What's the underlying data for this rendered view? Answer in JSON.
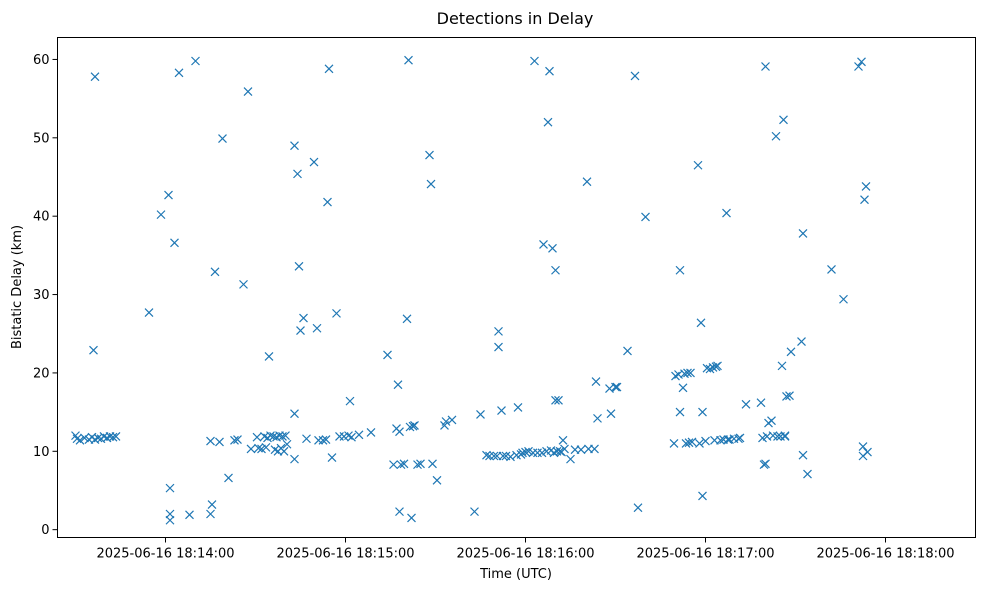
{
  "chart_data": {
    "type": "scatter",
    "title": "Detections in Delay",
    "xlabel": "Time (UTC)",
    "ylabel": "Bistatic Delay (km)",
    "marker": "x",
    "color": "#1f77b4",
    "grid": false,
    "x_unit": "seconds_after_18:13:00 (2025-06-16 UTC)",
    "xlim": [
      24,
      330
    ],
    "ylim": [
      -1.0,
      62.8
    ],
    "xticks": [
      {
        "value": 60,
        "label": "2025-06-16 18:14:00"
      },
      {
        "value": 120,
        "label": "2025-06-16 18:15:00"
      },
      {
        "value": 180,
        "label": "2025-06-16 18:16:00"
      },
      {
        "value": 240,
        "label": "2025-06-16 18:17:00"
      },
      {
        "value": 300,
        "label": "2025-06-16 18:18:00"
      }
    ],
    "yticks": [
      0,
      10,
      20,
      30,
      40,
      50,
      60
    ],
    "points": [
      [
        30.0,
        12.0
      ],
      [
        30.5,
        11.6
      ],
      [
        31.5,
        11.4
      ],
      [
        33.0,
        11.7
      ],
      [
        34.5,
        11.5
      ],
      [
        35.5,
        11.8
      ],
      [
        36.5,
        11.5
      ],
      [
        37.5,
        11.7
      ],
      [
        38.5,
        11.6
      ],
      [
        39.5,
        11.9
      ],
      [
        40.5,
        11.7
      ],
      [
        41.5,
        11.9
      ],
      [
        42.5,
        11.8
      ],
      [
        43.5,
        11.9
      ],
      [
        36.0,
        22.9
      ],
      [
        36.5,
        57.8
      ],
      [
        54.5,
        27.7
      ],
      [
        58.5,
        40.2
      ],
      [
        61.0,
        42.7
      ],
      [
        61.5,
        5.3
      ],
      [
        61.5,
        2.0
      ],
      [
        61.5,
        1.2
      ],
      [
        63.0,
        36.6
      ],
      [
        64.5,
        58.3
      ],
      [
        68.0,
        1.9
      ],
      [
        70.0,
        59.8
      ],
      [
        75.0,
        2.0
      ],
      [
        75.0,
        11.3
      ],
      [
        75.5,
        3.2
      ],
      [
        76.5,
        32.9
      ],
      [
        78.0,
        11.2
      ],
      [
        79.0,
        49.9
      ],
      [
        81.0,
        6.6
      ],
      [
        83.0,
        11.4
      ],
      [
        84.0,
        11.5
      ],
      [
        86.0,
        31.3
      ],
      [
        87.5,
        55.9
      ],
      [
        88.5,
        10.3
      ],
      [
        90.5,
        11.8
      ],
      [
        91.0,
        10.4
      ],
      [
        92.0,
        10.3
      ],
      [
        93.0,
        11.9
      ],
      [
        93.5,
        10.5
      ],
      [
        94.0,
        11.7
      ],
      [
        94.5,
        22.1
      ],
      [
        95.0,
        12.0
      ],
      [
        96.0,
        11.9
      ],
      [
        96.5,
        10.2
      ],
      [
        97.0,
        11.8
      ],
      [
        97.5,
        10.0
      ],
      [
        98.0,
        12.0
      ],
      [
        98.5,
        10.4
      ],
      [
        99.0,
        11.9
      ],
      [
        99.5,
        10.0
      ],
      [
        100.0,
        12.0
      ],
      [
        100.5,
        10.9
      ],
      [
        103.0,
        49.0
      ],
      [
        103.0,
        14.8
      ],
      [
        103.0,
        9.0
      ],
      [
        104.0,
        45.4
      ],
      [
        104.5,
        33.6
      ],
      [
        105.0,
        25.4
      ],
      [
        106.0,
        27.0
      ],
      [
        107.0,
        11.6
      ],
      [
        109.5,
        46.9
      ],
      [
        110.5,
        25.7
      ],
      [
        111.0,
        11.4
      ],
      [
        112.5,
        11.4
      ],
      [
        113.5,
        11.5
      ],
      [
        114.0,
        41.8
      ],
      [
        114.5,
        58.8
      ],
      [
        115.5,
        9.2
      ],
      [
        117.0,
        27.6
      ],
      [
        118.0,
        11.9
      ],
      [
        119.5,
        11.9
      ],
      [
        121.0,
        12.0
      ],
      [
        121.5,
        16.4
      ],
      [
        122.0,
        11.8
      ],
      [
        124.5,
        12.1
      ],
      [
        128.5,
        12.4
      ],
      [
        134.0,
        22.3
      ],
      [
        136.0,
        8.3
      ],
      [
        137.0,
        12.9
      ],
      [
        137.5,
        18.5
      ],
      [
        138.0,
        2.3
      ],
      [
        138.0,
        12.5
      ],
      [
        138.5,
        8.3
      ],
      [
        139.5,
        8.4
      ],
      [
        140.5,
        26.9
      ],
      [
        141.0,
        59.9
      ],
      [
        141.5,
        13.1
      ],
      [
        142.0,
        1.5
      ],
      [
        142.5,
        13.2
      ],
      [
        143.0,
        13.3
      ],
      [
        144.0,
        8.3
      ],
      [
        145.0,
        8.4
      ],
      [
        148.0,
        47.8
      ],
      [
        148.5,
        44.1
      ],
      [
        149.0,
        8.4
      ],
      [
        150.5,
        6.3
      ],
      [
        153.0,
        13.3
      ],
      [
        153.5,
        13.8
      ],
      [
        155.5,
        14.0
      ],
      [
        163.0,
        2.3
      ],
      [
        165.0,
        14.7
      ],
      [
        167.0,
        9.5
      ],
      [
        168.0,
        9.4
      ],
      [
        169.5,
        9.4
      ],
      [
        170.5,
        9.4
      ],
      [
        171.0,
        25.3
      ],
      [
        171.0,
        23.3
      ],
      [
        172.0,
        15.2
      ],
      [
        172.5,
        9.4
      ],
      [
        173.5,
        9.4
      ],
      [
        175.0,
        9.3
      ],
      [
        177.0,
        9.5
      ],
      [
        177.5,
        15.6
      ],
      [
        178.5,
        9.6
      ],
      [
        179.0,
        9.8
      ],
      [
        180.0,
        9.9
      ],
      [
        181.0,
        10.0
      ],
      [
        182.5,
        9.8
      ],
      [
        183.0,
        59.8
      ],
      [
        184.0,
        9.8
      ],
      [
        185.5,
        9.8
      ],
      [
        186.0,
        36.4
      ],
      [
        187.0,
        10.0
      ],
      [
        187.5,
        52.0
      ],
      [
        188.0,
        58.5
      ],
      [
        188.5,
        10.1
      ],
      [
        189.0,
        35.9
      ],
      [
        189.5,
        9.8
      ],
      [
        190.0,
        33.1
      ],
      [
        190.0,
        16.5
      ],
      [
        190.5,
        10.0
      ],
      [
        191.0,
        16.5
      ],
      [
        191.5,
        10.0
      ],
      [
        192.0,
        9.9
      ],
      [
        192.5,
        11.4
      ],
      [
        193.0,
        10.3
      ],
      [
        195.0,
        9.0
      ],
      [
        196.5,
        10.2
      ],
      [
        198.5,
        10.2
      ],
      [
        200.5,
        44.4
      ],
      [
        201.0,
        10.3
      ],
      [
        203.0,
        10.3
      ],
      [
        203.5,
        18.9
      ],
      [
        204.0,
        14.2
      ],
      [
        208.5,
        14.8
      ],
      [
        208.0,
        18.0
      ],
      [
        210.0,
        18.2
      ],
      [
        210.5,
        18.2
      ],
      [
        214.0,
        22.8
      ],
      [
        216.5,
        57.9
      ],
      [
        217.5,
        2.8
      ],
      [
        220.0,
        39.9
      ],
      [
        229.5,
        11.0
      ],
      [
        230.0,
        19.6
      ],
      [
        231.0,
        19.8
      ],
      [
        231.5,
        33.1
      ],
      [
        231.5,
        15.0
      ],
      [
        232.5,
        18.1
      ],
      [
        233.0,
        19.9
      ],
      [
        233.5,
        11.0
      ],
      [
        234.0,
        20.0
      ],
      [
        234.5,
        11.1
      ],
      [
        235.0,
        20.0
      ],
      [
        235.5,
        11.2
      ],
      [
        237.5,
        46.5
      ],
      [
        238.0,
        11.0
      ],
      [
        238.5,
        26.4
      ],
      [
        239.0,
        15.0
      ],
      [
        239.0,
        4.3
      ],
      [
        240.0,
        11.3
      ],
      [
        240.5,
        20.6
      ],
      [
        241.5,
        20.5
      ],
      [
        242.5,
        20.7
      ],
      [
        243.0,
        11.4
      ],
      [
        243.5,
        20.8
      ],
      [
        244.0,
        20.9
      ],
      [
        245.0,
        11.4
      ],
      [
        246.0,
        11.5
      ],
      [
        247.0,
        40.4
      ],
      [
        247.5,
        11.5
      ],
      [
        248.0,
        11.5
      ],
      [
        249.5,
        11.6
      ],
      [
        251.0,
        11.6
      ],
      [
        251.5,
        11.7
      ],
      [
        253.5,
        16.0
      ],
      [
        258.5,
        16.2
      ],
      [
        259.0,
        11.7
      ],
      [
        259.5,
        8.3
      ],
      [
        260.0,
        59.1
      ],
      [
        260.0,
        8.4
      ],
      [
        260.5,
        11.9
      ],
      [
        261.0,
        13.6
      ],
      [
        262.0,
        13.9
      ],
      [
        262.5,
        12.0
      ],
      [
        263.5,
        50.2
      ],
      [
        264.0,
        11.9
      ],
      [
        265.0,
        11.9
      ],
      [
        265.5,
        20.9
      ],
      [
        266.0,
        52.3
      ],
      [
        266.5,
        12.0
      ],
      [
        267.0,
        17.0
      ],
      [
        268.0,
        17.1
      ],
      [
        268.5,
        22.7
      ],
      [
        266.5,
        11.9
      ],
      [
        272.5,
        37.8
      ],
      [
        272.0,
        24.0
      ],
      [
        272.5,
        9.5
      ],
      [
        274.0,
        7.1
      ],
      [
        282.0,
        33.2
      ],
      [
        286.0,
        29.4
      ],
      [
        291.0,
        59.1
      ],
      [
        292.0,
        59.7
      ],
      [
        292.5,
        9.4
      ],
      [
        292.5,
        10.6
      ],
      [
        293.0,
        42.1
      ],
      [
        293.5,
        43.8
      ],
      [
        294.0,
        9.9
      ]
    ]
  }
}
